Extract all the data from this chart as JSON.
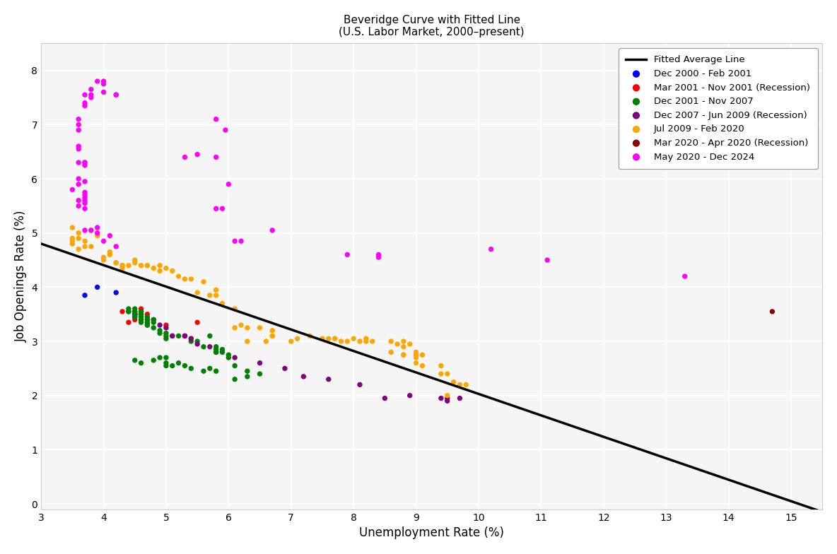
{
  "title_line1": "Beveridge Curve with Fitted Line",
  "title_line2": "(U.S. Labor Market, 2000–present)",
  "xlabel": "Unemployment Rate (%)",
  "ylabel": "Job Openings Rate (%)",
  "xlim": [
    3.0,
    15.5
  ],
  "ylim": [
    -0.1,
    8.5
  ],
  "xticks": [
    3,
    4,
    5,
    6,
    7,
    8,
    9,
    10,
    11,
    12,
    13,
    14,
    15
  ],
  "yticks": [
    0,
    1,
    2,
    3,
    4,
    5,
    6,
    7,
    8
  ],
  "fitted_line_x1": 3.0,
  "fitted_line_x2": 15.5,
  "fitted_line_slope": -0.396,
  "fitted_line_intercept": 5.99,
  "bg_color": "#f5f5f5",
  "grid_color": "white",
  "series": [
    {
      "label": "Dec 2000 - Feb 2001",
      "color": "#0000FF",
      "points": [
        [
          3.7,
          3.85
        ],
        [
          3.9,
          4.0
        ],
        [
          4.2,
          3.9
        ]
      ]
    },
    {
      "label": "Mar 2001 - Nov 2001 (Recession)",
      "color": "#FF0000",
      "points": [
        [
          4.3,
          3.55
        ],
        [
          4.4,
          3.35
        ],
        [
          4.5,
          3.5
        ],
        [
          4.5,
          3.4
        ],
        [
          4.6,
          3.6
        ],
        [
          4.7,
          3.5
        ],
        [
          4.8,
          3.4
        ],
        [
          5.0,
          3.3
        ],
        [
          5.5,
          3.35
        ]
      ]
    },
    {
      "label": "Dec 2001 - Nov 2007",
      "color": "#008000",
      "points": [
        [
          5.7,
          3.1
        ],
        [
          5.8,
          2.9
        ],
        [
          5.9,
          2.85
        ],
        [
          5.8,
          2.8
        ],
        [
          6.0,
          2.7
        ],
        [
          6.0,
          2.75
        ],
        [
          5.9,
          2.8
        ],
        [
          5.8,
          2.85
        ],
        [
          5.6,
          2.9
        ],
        [
          5.5,
          3.0
        ],
        [
          5.4,
          3.0
        ],
        [
          5.3,
          3.1
        ],
        [
          5.4,
          3.05
        ],
        [
          5.2,
          3.1
        ],
        [
          5.1,
          3.1
        ],
        [
          5.0,
          3.05
        ],
        [
          5.0,
          3.15
        ],
        [
          4.9,
          3.2
        ],
        [
          4.8,
          3.25
        ],
        [
          4.7,
          3.3
        ],
        [
          4.6,
          3.4
        ],
        [
          4.5,
          3.45
        ],
        [
          4.5,
          3.5
        ],
        [
          4.6,
          3.5
        ],
        [
          4.5,
          3.5
        ],
        [
          4.4,
          3.55
        ],
        [
          4.4,
          3.6
        ],
        [
          4.5,
          3.6
        ],
        [
          4.6,
          3.55
        ],
        [
          4.5,
          3.5
        ],
        [
          4.4,
          3.55
        ],
        [
          4.5,
          3.5
        ],
        [
          4.5,
          2.65
        ],
        [
          4.6,
          2.6
        ],
        [
          5.0,
          2.55
        ],
        [
          5.1,
          2.55
        ],
        [
          5.0,
          2.6
        ],
        [
          4.8,
          2.65
        ],
        [
          4.9,
          2.7
        ],
        [
          5.0,
          2.7
        ],
        [
          5.2,
          2.6
        ],
        [
          5.3,
          2.55
        ],
        [
          5.4,
          2.5
        ],
        [
          5.6,
          2.45
        ],
        [
          5.7,
          2.5
        ],
        [
          5.8,
          2.45
        ],
        [
          6.1,
          2.3
        ],
        [
          6.3,
          2.35
        ],
        [
          6.3,
          2.45
        ],
        [
          6.5,
          2.4
        ],
        [
          6.1,
          2.55
        ],
        [
          5.8,
          2.8
        ],
        [
          5.0,
          3.1
        ],
        [
          4.9,
          3.15
        ],
        [
          4.7,
          3.3
        ],
        [
          4.6,
          3.45
        ],
        [
          4.5,
          3.5
        ],
        [
          4.6,
          3.55
        ],
        [
          4.7,
          3.35
        ],
        [
          4.6,
          3.35
        ],
        [
          4.5,
          3.55
        ],
        [
          4.5,
          3.55
        ],
        [
          4.6,
          3.5
        ],
        [
          4.7,
          3.45
        ],
        [
          4.7,
          3.4
        ],
        [
          4.8,
          3.4
        ],
        [
          4.7,
          3.4
        ],
        [
          4.8,
          3.35
        ],
        [
          4.7,
          3.35
        ],
        [
          4.6,
          3.4
        ],
        [
          4.5,
          3.45
        ]
      ]
    },
    {
      "label": "Dec 2007 - Jun 2009 (Recession)",
      "color": "#800080",
      "points": [
        [
          4.9,
          3.3
        ],
        [
          5.0,
          3.25
        ],
        [
          5.1,
          3.1
        ],
        [
          5.3,
          3.1
        ],
        [
          5.4,
          3.05
        ],
        [
          5.5,
          2.95
        ],
        [
          5.7,
          2.9
        ],
        [
          6.1,
          2.7
        ],
        [
          6.5,
          2.6
        ],
        [
          6.9,
          2.5
        ],
        [
          7.2,
          2.35
        ],
        [
          7.6,
          2.3
        ],
        [
          8.1,
          2.2
        ],
        [
          8.5,
          1.95
        ],
        [
          8.9,
          2.0
        ],
        [
          9.4,
          1.95
        ],
        [
          9.5,
          1.9
        ],
        [
          9.5,
          1.95
        ],
        [
          9.7,
          1.95
        ]
      ]
    },
    {
      "label": "Jul 2009 - Feb 2020",
      "color": "#FFA500",
      "points": [
        [
          9.5,
          2.0
        ],
        [
          9.7,
          2.2
        ],
        [
          9.8,
          2.2
        ],
        [
          9.6,
          2.25
        ],
        [
          9.4,
          2.4
        ],
        [
          9.5,
          2.4
        ],
        [
          9.4,
          2.55
        ],
        [
          9.1,
          2.55
        ],
        [
          9.0,
          2.6
        ],
        [
          9.0,
          2.7
        ],
        [
          8.8,
          2.75
        ],
        [
          8.8,
          2.75
        ],
        [
          8.6,
          2.8
        ],
        [
          9.0,
          2.75
        ],
        [
          9.1,
          2.75
        ],
        [
          9.0,
          2.8
        ],
        [
          8.9,
          2.95
        ],
        [
          8.8,
          2.9
        ],
        [
          8.8,
          3.0
        ],
        [
          8.7,
          2.95
        ],
        [
          8.6,
          3.0
        ],
        [
          8.3,
          3.0
        ],
        [
          8.2,
          3.0
        ],
        [
          8.1,
          3.0
        ],
        [
          8.2,
          3.05
        ],
        [
          8.0,
          3.05
        ],
        [
          7.9,
          3.0
        ],
        [
          7.8,
          3.0
        ],
        [
          7.7,
          3.05
        ],
        [
          7.7,
          3.05
        ],
        [
          7.6,
          3.05
        ],
        [
          7.5,
          3.05
        ],
        [
          7.3,
          3.1
        ],
        [
          7.1,
          3.05
        ],
        [
          7.0,
          3.0
        ],
        [
          6.7,
          3.1
        ],
        [
          6.6,
          3.0
        ],
        [
          6.7,
          3.1
        ],
        [
          6.7,
          3.2
        ],
        [
          6.5,
          3.25
        ],
        [
          6.3,
          3.0
        ],
        [
          6.3,
          3.25
        ],
        [
          6.1,
          3.25
        ],
        [
          6.2,
          3.3
        ],
        [
          6.1,
          3.6
        ],
        [
          5.9,
          3.7
        ],
        [
          5.8,
          3.85
        ],
        [
          5.7,
          3.85
        ],
        [
          5.8,
          3.95
        ],
        [
          5.5,
          3.9
        ],
        [
          5.6,
          4.1
        ],
        [
          5.4,
          4.15
        ],
        [
          5.3,
          4.15
        ],
        [
          5.2,
          4.2
        ],
        [
          5.1,
          4.3
        ],
        [
          5.0,
          4.35
        ],
        [
          4.9,
          4.3
        ],
        [
          4.8,
          4.35
        ],
        [
          4.9,
          4.4
        ],
        [
          4.7,
          4.4
        ],
        [
          4.7,
          4.4
        ],
        [
          4.6,
          4.4
        ],
        [
          4.5,
          4.5
        ],
        [
          4.3,
          4.35
        ],
        [
          4.5,
          4.45
        ],
        [
          4.4,
          4.4
        ],
        [
          4.3,
          4.4
        ],
        [
          4.2,
          4.45
        ],
        [
          4.2,
          4.45
        ],
        [
          4.3,
          4.4
        ],
        [
          4.1,
          4.6
        ],
        [
          4.0,
          4.55
        ],
        [
          4.0,
          4.5
        ],
        [
          4.1,
          4.65
        ],
        [
          3.8,
          4.75
        ],
        [
          3.7,
          4.85
        ],
        [
          3.9,
          4.95
        ],
        [
          3.8,
          5.05
        ],
        [
          3.6,
          5.0
        ],
        [
          3.5,
          5.1
        ],
        [
          3.5,
          4.85
        ],
        [
          3.6,
          4.7
        ],
        [
          3.7,
          4.75
        ],
        [
          3.5,
          4.8
        ],
        [
          3.6,
          4.9
        ],
        [
          3.5,
          4.9
        ]
      ]
    },
    {
      "label": "Mar 2020 - Apr 2020 (Recession)",
      "color": "#8B0000",
      "points": [
        [
          14.7,
          3.55
        ]
      ]
    },
    {
      "label": "May 2020 - Dec 2024",
      "color": "#FF00FF",
      "points": [
        [
          13.3,
          4.2
        ],
        [
          11.1,
          4.5
        ],
        [
          10.2,
          4.7
        ],
        [
          8.4,
          4.55
        ],
        [
          8.4,
          4.6
        ],
        [
          7.9,
          4.6
        ],
        [
          6.7,
          5.05
        ],
        [
          6.2,
          4.85
        ],
        [
          6.1,
          4.85
        ],
        [
          6.0,
          5.9
        ],
        [
          5.9,
          5.45
        ],
        [
          5.8,
          5.45
        ],
        [
          5.8,
          6.4
        ],
        [
          5.95,
          6.9
        ],
        [
          5.8,
          7.1
        ],
        [
          5.5,
          6.45
        ],
        [
          5.3,
          6.4
        ],
        [
          4.2,
          7.55
        ],
        [
          4.2,
          7.55
        ],
        [
          4.0,
          7.6
        ],
        [
          4.0,
          7.75
        ],
        [
          4.0,
          7.8
        ],
        [
          3.9,
          7.8
        ],
        [
          3.8,
          7.65
        ],
        [
          3.8,
          7.5
        ],
        [
          3.8,
          7.55
        ],
        [
          3.7,
          7.4
        ],
        [
          3.7,
          7.35
        ],
        [
          3.7,
          7.55
        ],
        [
          3.6,
          7.1
        ],
        [
          3.6,
          7.0
        ],
        [
          3.6,
          6.9
        ],
        [
          3.6,
          6.6
        ],
        [
          3.6,
          6.55
        ],
        [
          3.6,
          6.3
        ],
        [
          3.7,
          6.3
        ],
        [
          3.7,
          6.3
        ],
        [
          3.7,
          6.25
        ],
        [
          3.6,
          6.0
        ],
        [
          3.7,
          5.95
        ],
        [
          3.6,
          5.9
        ],
        [
          3.5,
          5.8
        ],
        [
          3.7,
          5.75
        ],
        [
          3.7,
          5.7
        ],
        [
          3.7,
          5.65
        ],
        [
          3.7,
          5.6
        ],
        [
          3.6,
          5.6
        ],
        [
          3.7,
          5.55
        ],
        [
          3.6,
          5.5
        ],
        [
          3.7,
          5.45
        ],
        [
          3.9,
          5.1
        ],
        [
          3.8,
          5.05
        ],
        [
          3.7,
          5.05
        ],
        [
          3.9,
          5.0
        ],
        [
          4.1,
          4.95
        ],
        [
          4.0,
          4.85
        ],
        [
          4.2,
          4.75
        ]
      ]
    }
  ]
}
